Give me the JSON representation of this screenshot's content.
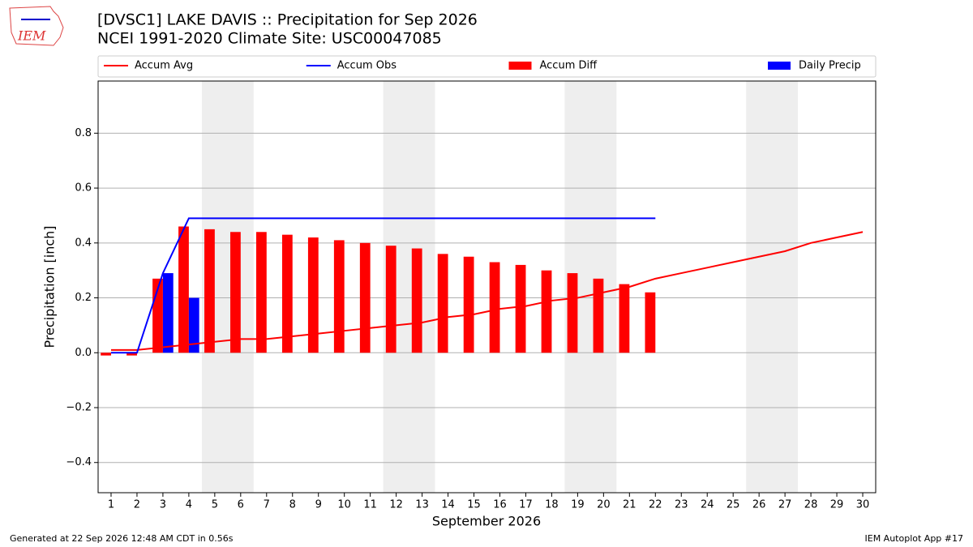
{
  "logo_text": "IEM",
  "footer_left": "Generated at 22 Sep 2026 12:48 AM CDT in 0.56s",
  "footer_right": "IEM Autoplot App #17",
  "chart_data": {
    "type": "combo",
    "title": "[DVSC1] LAKE DAVIS :: Precipitation for Sep 2026",
    "subtitle": "NCEI 1991-2020 Climate Site: USC00047085",
    "x_label": "September 2026",
    "y_label": "Precipitation [inch]",
    "x": [
      1,
      2,
      3,
      4,
      5,
      6,
      7,
      8,
      9,
      10,
      11,
      12,
      13,
      14,
      15,
      16,
      17,
      18,
      19,
      20,
      21,
      22,
      23,
      24,
      25,
      26,
      27,
      28,
      29,
      30
    ],
    "xlim": [
      0.5,
      30.5
    ],
    "ylim": [
      -0.51,
      0.99
    ],
    "yticks": [
      {
        "value": -0.4,
        "label": "−0.4"
      },
      {
        "value": -0.2,
        "label": "−0.2"
      },
      {
        "value": 0,
        "label": "0.0"
      },
      {
        "value": 0.2,
        "label": "0.2"
      },
      {
        "value": 0.4,
        "label": "0.4"
      },
      {
        "value": 0.6,
        "label": "0.6"
      },
      {
        "value": 0.8,
        "label": "0.8"
      }
    ],
    "grid": true,
    "legend": "top",
    "series": [
      {
        "name": "Accum Avg",
        "kind": "line",
        "color": "#ff0000",
        "values": [
          0.01,
          0.01,
          0.02,
          0.03,
          0.04,
          0.05,
          0.05,
          0.06,
          0.07,
          0.08,
          0.09,
          0.1,
          0.11,
          0.13,
          0.14,
          0.16,
          0.17,
          0.19,
          0.2,
          0.22,
          0.24,
          0.27,
          0.29,
          0.31,
          0.33,
          0.35,
          0.37,
          0.4,
          0.42,
          0.44
        ]
      },
      {
        "name": "Accum Obs",
        "kind": "line",
        "color": "#0000ff",
        "values": [
          0,
          0,
          0.29,
          0.49,
          0.49,
          0.49,
          0.49,
          0.49,
          0.49,
          0.49,
          0.49,
          0.49,
          0.49,
          0.49,
          0.49,
          0.49,
          0.49,
          0.49,
          0.49,
          0.49,
          0.49,
          0.49,
          null,
          null,
          null,
          null,
          null,
          null,
          null,
          null
        ]
      },
      {
        "name": "Accum Diff",
        "kind": "bar",
        "offset": "left",
        "color": "#ff0000",
        "values": [
          -0.01,
          -0.01,
          0.27,
          0.46,
          0.45,
          0.44,
          0.44,
          0.43,
          0.42,
          0.41,
          0.4,
          0.39,
          0.38,
          0.36,
          0.35,
          0.33,
          0.32,
          0.3,
          0.29,
          0.27,
          0.25,
          0.22,
          null,
          null,
          null,
          null,
          null,
          null,
          null,
          null
        ]
      },
      {
        "name": "Daily Precip",
        "kind": "bar",
        "offset": "right",
        "color": "#0000ff",
        "values": [
          0,
          0,
          0.29,
          0.2,
          0,
          0,
          0,
          0,
          0,
          0,
          0,
          0,
          0,
          0,
          0,
          0,
          0,
          0,
          0,
          0,
          0,
          0,
          null,
          null,
          null,
          null,
          null,
          null,
          null,
          null
        ]
      }
    ]
  }
}
